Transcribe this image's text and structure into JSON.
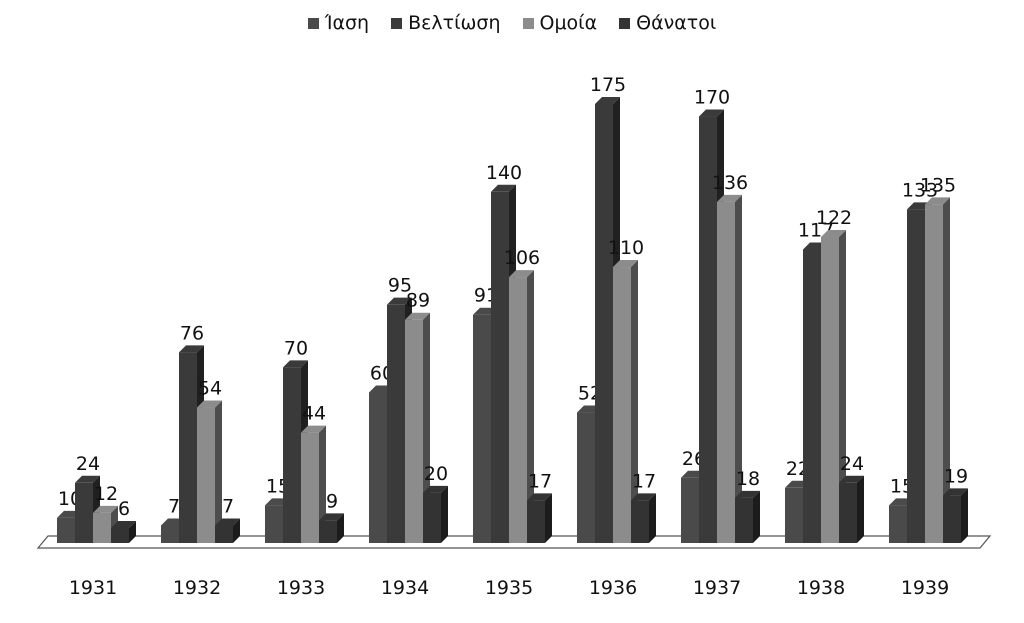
{
  "chart_data": {
    "type": "bar",
    "categories": [
      "1931",
      "1932",
      "1933",
      "1934",
      "1935",
      "1936",
      "1937",
      "1938",
      "1939"
    ],
    "series": [
      {
        "name": "Ίαση",
        "values": [
          10,
          7,
          15,
          60,
          91,
          52,
          26,
          22,
          15
        ],
        "color": "#4a4a4a"
      },
      {
        "name": "Βελτίωση",
        "values": [
          24,
          76,
          70,
          95,
          140,
          175,
          170,
          117,
          133
        ],
        "color": "#3a3a3a"
      },
      {
        "name": "Ομοία",
        "values": [
          12,
          54,
          44,
          89,
          106,
          110,
          136,
          122,
          135
        ],
        "color": "#8c8c8c"
      },
      {
        "name": "Θάνατοι",
        "values": [
          6,
          7,
          9,
          20,
          17,
          17,
          18,
          24,
          19
        ],
        "color": "#333333"
      }
    ],
    "title": "",
    "xlabel": "",
    "ylabel": "",
    "ylim": [
      0,
      180
    ],
    "grid": false,
    "legend_position": "top-center"
  }
}
